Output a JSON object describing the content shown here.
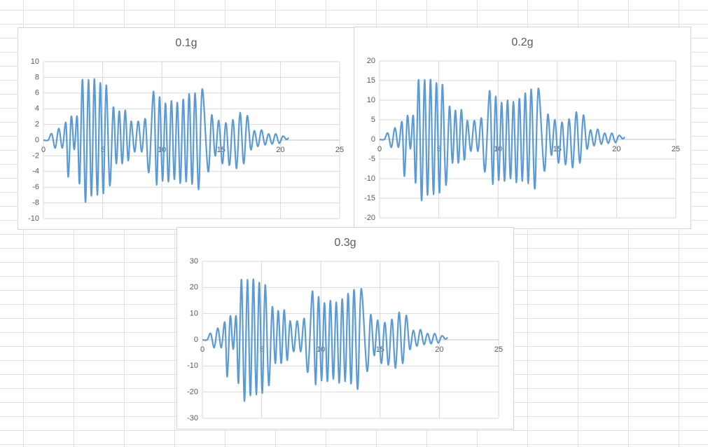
{
  "chart_data": [
    {
      "type": "line",
      "title": "0.1g",
      "color": "#5b9bd5",
      "grid": true,
      "xlim": [
        0,
        25
      ],
      "xticks": [
        0,
        5,
        10,
        15,
        20,
        25
      ],
      "ylim": [
        -10,
        10
      ],
      "yticks": [
        -10,
        -8,
        -6,
        -4,
        -2,
        0,
        2,
        4,
        6,
        8,
        10
      ],
      "x": [
        0,
        0.4,
        0.7,
        1.0,
        1.3,
        1.6,
        1.9,
        2.1,
        2.35,
        2.6,
        2.85,
        3.05,
        3.3,
        3.55,
        3.8,
        4.05,
        4.3,
        4.55,
        4.8,
        5.05,
        5.3,
        5.6,
        5.9,
        6.15,
        6.4,
        6.65,
        6.9,
        7.15,
        7.4,
        7.7,
        8.0,
        8.3,
        8.6,
        8.9,
        9.3,
        9.55,
        9.8,
        10.05,
        10.3,
        10.55,
        10.8,
        11.05,
        11.3,
        11.55,
        11.8,
        12.05,
        12.3,
        12.55,
        12.8,
        13.1,
        13.4,
        13.9,
        14.2,
        14.5,
        14.8,
        15.1,
        15.4,
        15.7,
        16.0,
        16.3,
        16.6,
        16.9,
        17.2,
        17.5,
        17.8,
        18.1,
        18.4,
        18.7,
        19.0,
        19.3,
        19.6,
        19.9,
        20.2,
        20.5,
        20.7
      ],
      "values": [
        0,
        0,
        0.8,
        -1,
        1.5,
        -1,
        2.2,
        -4.7,
        3,
        -1.2,
        3,
        -5.5,
        7.7,
        -7.9,
        7.7,
        -7.1,
        7.8,
        -7,
        7.3,
        -6.8,
        7,
        -5.8,
        4.2,
        -3,
        3.7,
        -3,
        3.8,
        -2.6,
        2.4,
        -1.5,
        2.4,
        -1.5,
        2.7,
        -4.1,
        6.2,
        -5.7,
        5.5,
        -5.2,
        4.7,
        -5.3,
        5,
        -5,
        4.8,
        -5.5,
        5.2,
        -5.3,
        5.9,
        -5.6,
        6,
        -6.3,
        6.5,
        -4,
        3.2,
        -2,
        2.5,
        -3,
        2.2,
        -3.2,
        2.6,
        -3.6,
        3.5,
        -3,
        3.1,
        -1.2,
        1.2,
        -0.8,
        1.3,
        -0.6,
        0.8,
        -0.5,
        0.8,
        -0.4,
        0.5,
        0.1,
        0.3
      ]
    },
    {
      "type": "line",
      "title": "0.2g",
      "color": "#5b9bd5",
      "grid": true,
      "xlim": [
        0,
        25
      ],
      "xticks": [
        0,
        5,
        10,
        15,
        20,
        25
      ],
      "ylim": [
        -20,
        20
      ],
      "yticks": [
        -20,
        -15,
        -10,
        -5,
        0,
        5,
        10,
        15,
        20
      ],
      "x": [
        0,
        0.4,
        0.7,
        1.0,
        1.3,
        1.6,
        1.9,
        2.1,
        2.35,
        2.6,
        2.85,
        3.05,
        3.3,
        3.55,
        3.8,
        4.05,
        4.3,
        4.55,
        4.8,
        5.05,
        5.3,
        5.6,
        5.9,
        6.15,
        6.4,
        6.65,
        6.9,
        7.15,
        7.4,
        7.7,
        8.0,
        8.3,
        8.6,
        8.9,
        9.3,
        9.55,
        9.8,
        10.05,
        10.3,
        10.55,
        10.8,
        11.05,
        11.3,
        11.55,
        11.8,
        12.05,
        12.3,
        12.55,
        12.8,
        13.1,
        13.4,
        13.9,
        14.2,
        14.5,
        14.8,
        15.1,
        15.4,
        15.7,
        16.0,
        16.3,
        16.6,
        16.9,
        17.2,
        17.5,
        17.8,
        18.1,
        18.4,
        18.7,
        19.0,
        19.3,
        19.6,
        19.9,
        20.2,
        20.5,
        20.7
      ],
      "values": [
        0,
        0,
        1.6,
        -2,
        3,
        -2,
        4.4,
        -9.4,
        6,
        -2.4,
        6,
        -11,
        15.2,
        -15.6,
        15.2,
        -14.2,
        15.3,
        -14,
        14.4,
        -13.6,
        14,
        -11.6,
        8.4,
        -6,
        7.4,
        -6,
        7.6,
        -5.2,
        4.8,
        -3,
        4.8,
        -3,
        5.4,
        -8.2,
        12.4,
        -11.4,
        11,
        -10.4,
        9.4,
        -10.6,
        10,
        -10,
        9.6,
        -11,
        10.4,
        -10.6,
        11.8,
        -11.2,
        12.8,
        -12.6,
        13,
        -8,
        6.4,
        -4,
        5,
        -6,
        4.4,
        -6.4,
        5.2,
        -7.2,
        7,
        -6,
        6.2,
        -2.4,
        2.4,
        -1.6,
        2.6,
        -1.2,
        1.6,
        -1,
        1.6,
        -0.8,
        1,
        0.2,
        0.6
      ]
    },
    {
      "type": "line",
      "title": "0.3g",
      "color": "#5b9bd5",
      "grid": true,
      "xlim": [
        0,
        25
      ],
      "xticks": [
        0,
        5,
        10,
        15,
        20,
        25
      ],
      "ylim": [
        -30,
        30
      ],
      "yticks": [
        -30,
        -20,
        -10,
        0,
        10,
        20,
        30
      ],
      "x": [
        0,
        0.4,
        0.7,
        1.0,
        1.3,
        1.6,
        1.9,
        2.1,
        2.35,
        2.6,
        2.85,
        3.05,
        3.3,
        3.55,
        3.8,
        4.05,
        4.3,
        4.55,
        4.8,
        5.05,
        5.3,
        5.6,
        5.9,
        6.15,
        6.4,
        6.65,
        6.9,
        7.15,
        7.4,
        7.7,
        8.0,
        8.3,
        8.6,
        8.9,
        9.3,
        9.55,
        9.8,
        10.05,
        10.3,
        10.55,
        10.8,
        11.05,
        11.3,
        11.55,
        11.8,
        12.05,
        12.3,
        12.55,
        12.8,
        13.1,
        13.4,
        13.9,
        14.2,
        14.5,
        14.8,
        15.1,
        15.4,
        15.7,
        16.0,
        16.3,
        16.6,
        16.9,
        17.2,
        17.5,
        17.8,
        18.1,
        18.4,
        18.7,
        19.0,
        19.3,
        19.6,
        19.9,
        20.2,
        20.5,
        20.7
      ],
      "values": [
        0,
        0,
        2.4,
        -3,
        4.5,
        -3,
        6.6,
        -14.1,
        9,
        -3.6,
        9,
        -16.5,
        23,
        -23.5,
        23,
        -21.3,
        23.2,
        -21,
        21.9,
        -20.4,
        21,
        -17.4,
        12.6,
        -9,
        11.1,
        -9,
        11.4,
        -7.8,
        7.2,
        -4.5,
        7.2,
        -4.5,
        8.1,
        -12.3,
        18.6,
        -17.1,
        16.5,
        -15.6,
        14.1,
        -15.9,
        15,
        -15,
        14.4,
        -16.5,
        15.6,
        -15.9,
        17.7,
        -16.8,
        19.2,
        -18.9,
        19.5,
        -12,
        9.6,
        -6,
        7.5,
        -9,
        6.6,
        -9.6,
        7.8,
        -10.8,
        10.5,
        -9,
        9.3,
        -3.6,
        3.6,
        -2.4,
        3.9,
        -1.8,
        2.4,
        -1.5,
        2.4,
        -1.2,
        1.5,
        0.3,
        0.9
      ]
    }
  ]
}
